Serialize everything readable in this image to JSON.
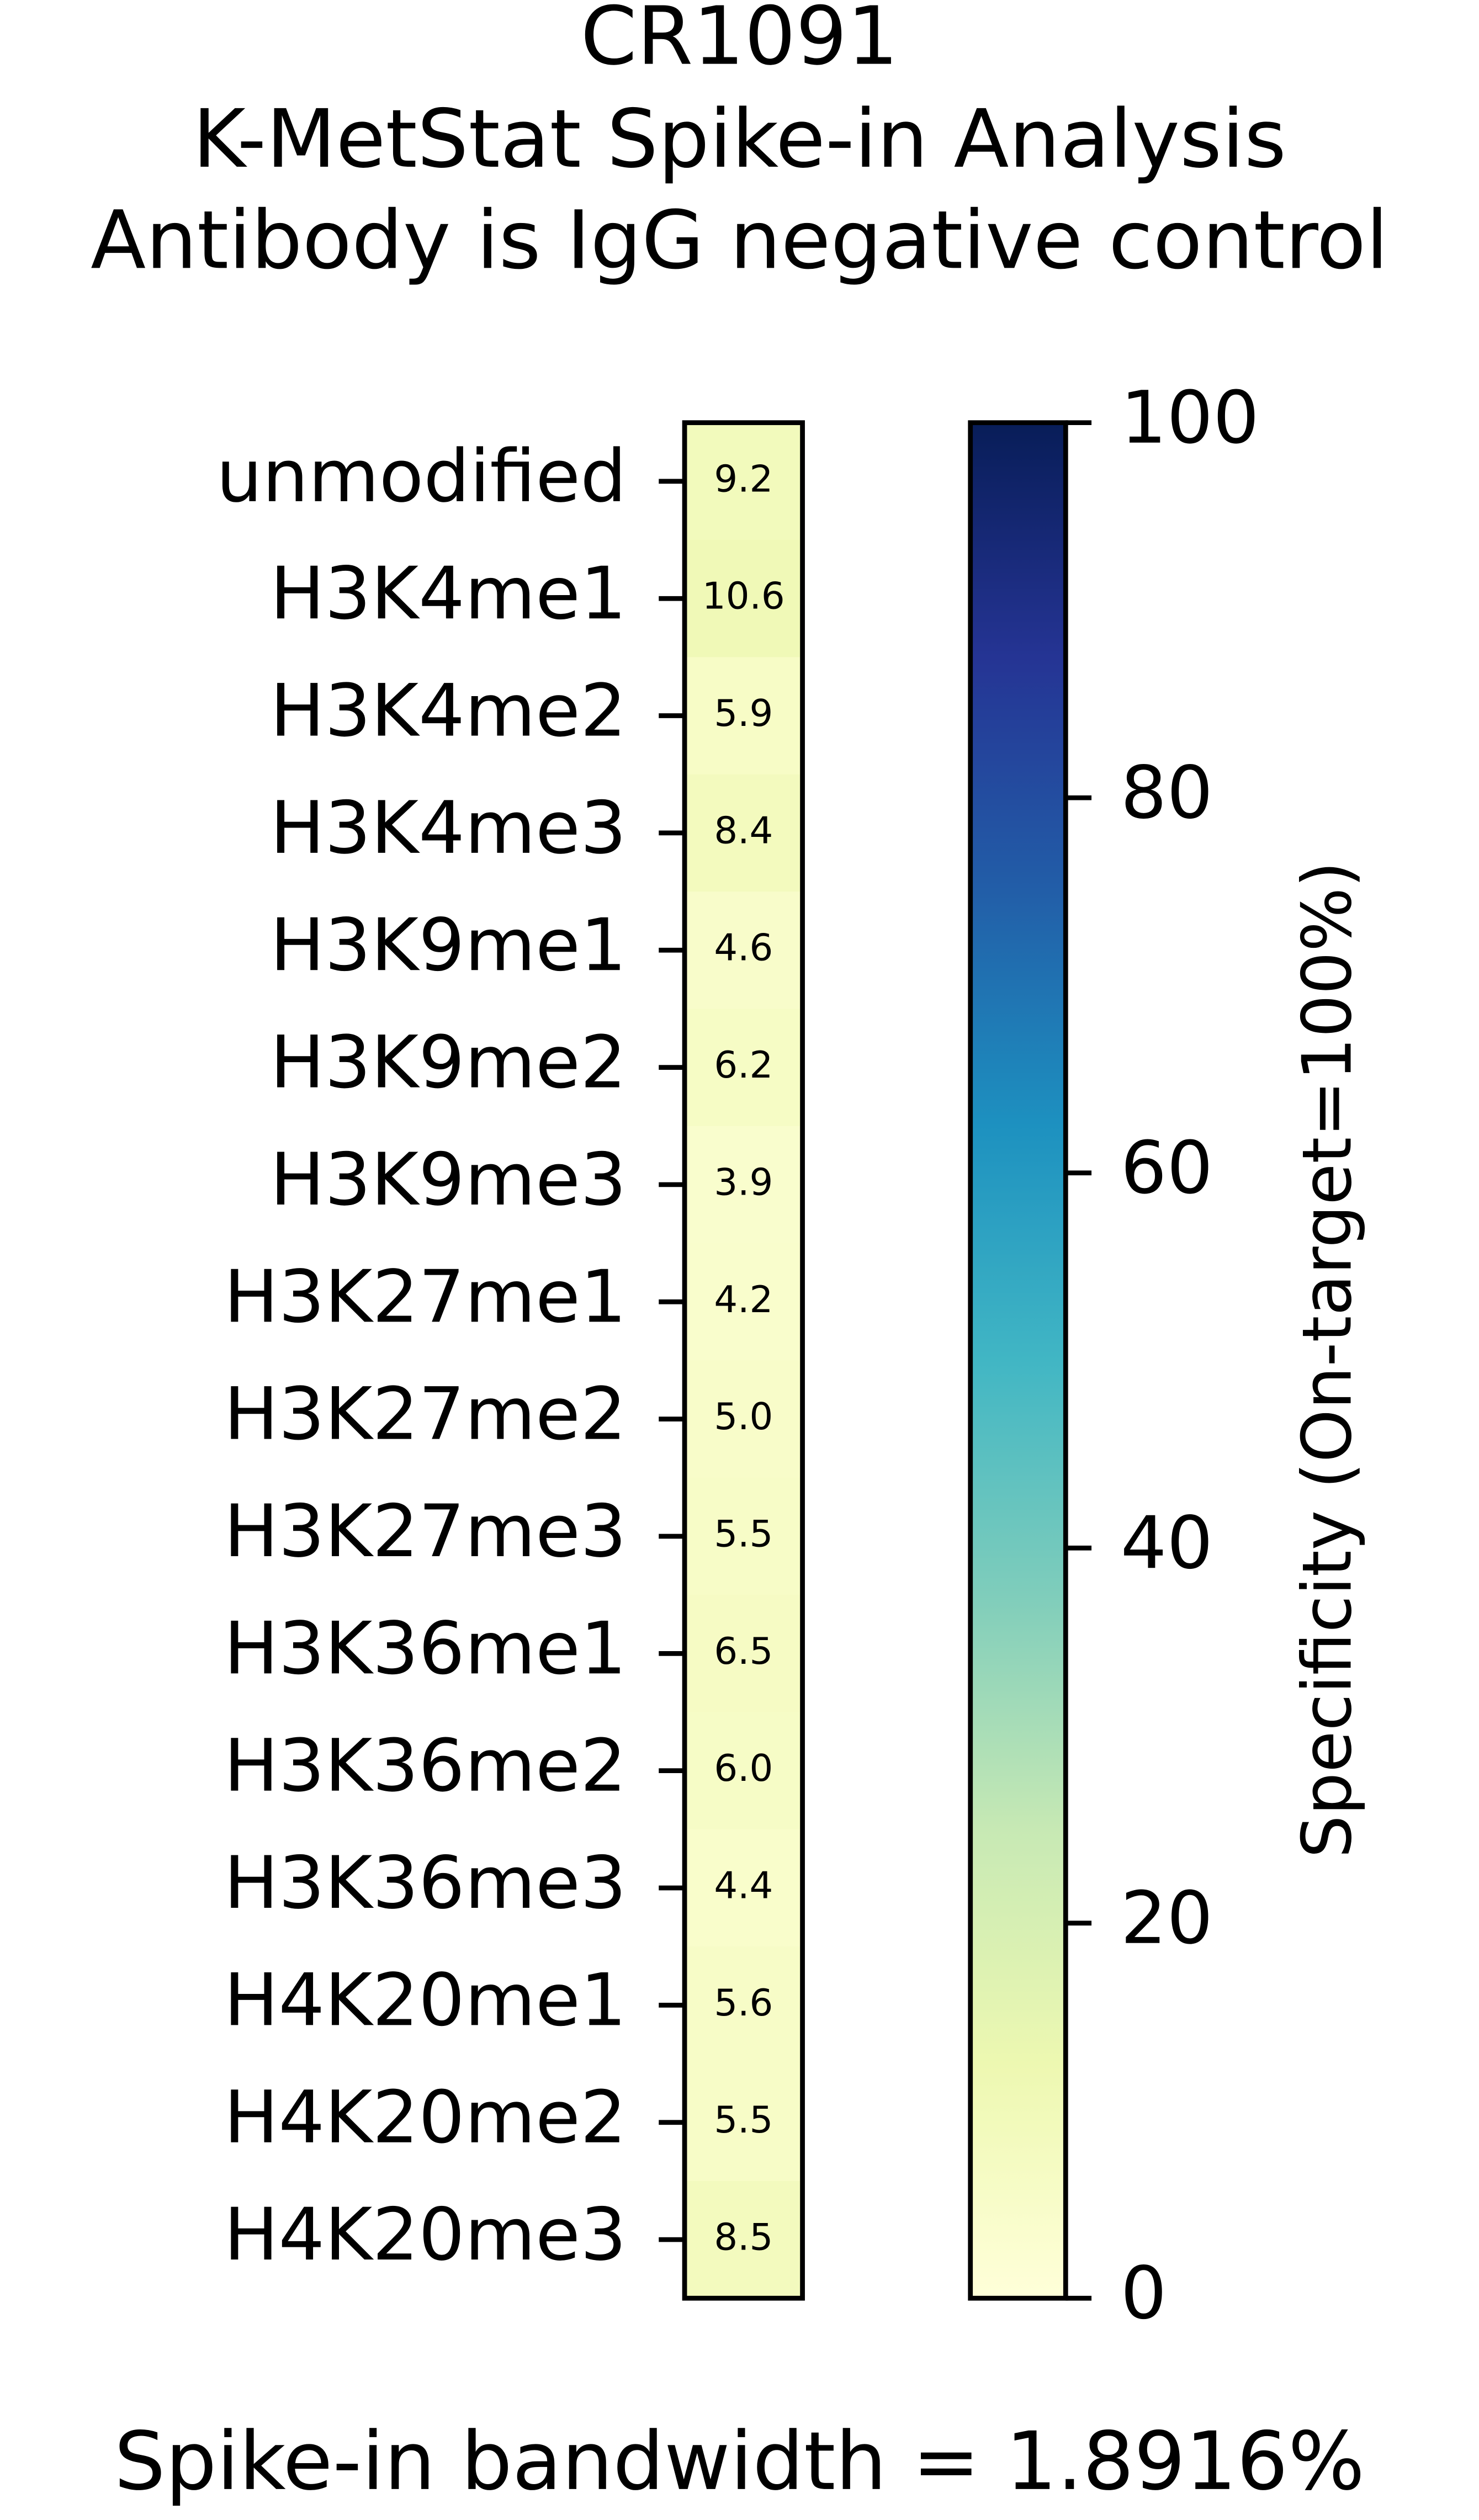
{
  "chart_data": {
    "type": "heatmap",
    "title": [
      "CR1091",
      "K-MetStat Spike-in Analysis",
      "Antibody is IgG negative control"
    ],
    "categories": [
      "unmodified",
      "H3K4me1",
      "H3K4me2",
      "H3K4me3",
      "H3K9me1",
      "H3K9me2",
      "H3K9me3",
      "H3K27me1",
      "H3K27me2",
      "H3K27me3",
      "H3K36me1",
      "H3K36me2",
      "H3K36me3",
      "H4K20me1",
      "H4K20me2",
      "H4K20me3"
    ],
    "values": [
      9.2,
      10.6,
      5.9,
      8.4,
      4.6,
      6.2,
      3.9,
      4.2,
      5.0,
      5.5,
      6.5,
      6.0,
      4.4,
      5.6,
      5.5,
      8.5
    ],
    "value_labels": [
      "9.2",
      "10.6",
      "5.9",
      "8.4",
      "4.6",
      "6.2",
      "3.9",
      "4.2",
      "5.0",
      "5.5",
      "6.5",
      "6.0",
      "4.4",
      "5.6",
      "5.5",
      "8.5"
    ],
    "colorscale": [
      "#ffffd9",
      "#edf8b1",
      "#c7e9b4",
      "#7fcdbb",
      "#41b6c4",
      "#1d91c0",
      "#225ea8",
      "#253494",
      "#081d58"
    ],
    "ylim": [
      0,
      100
    ],
    "yticks": [
      0,
      20,
      40,
      60,
      80,
      100
    ],
    "colorbar_label": "Specificity (On-target=100%)",
    "annotation": "Spike-in bandwidth = 1.8916%"
  }
}
